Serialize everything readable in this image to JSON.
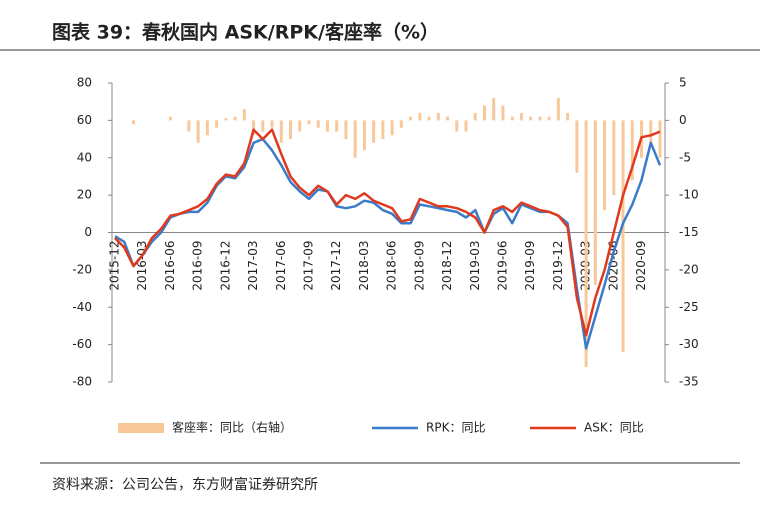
{
  "chart_data": {
    "type": "combo",
    "title": "图表 39：春秋国内 ASK/RPK/客座率（%）",
    "source": "资料来源：公司公告，东方财富证券研究所",
    "categories": [
      "2015-12",
      null,
      null,
      "2016-03",
      null,
      null,
      "2016-06",
      null,
      null,
      "2016-09",
      null,
      null,
      "2016-12",
      null,
      null,
      "2017-03",
      null,
      null,
      "2017-06",
      null,
      null,
      "2017-09",
      null,
      null,
      "2017-12",
      null,
      null,
      "2018-03",
      null,
      null,
      "2018-06",
      null,
      null,
      "2018-09",
      null,
      null,
      "2018-12",
      null,
      null,
      "2019-03",
      null,
      null,
      "2019-06",
      null,
      null,
      "2019-09",
      null,
      null,
      "2019-12",
      null,
      null,
      "2020-03",
      null,
      null,
      "2020-06",
      null,
      null,
      "2020-09",
      null,
      null
    ],
    "ylim": [
      -80,
      80
    ],
    "yticks": [
      80,
      60,
      40,
      20,
      0,
      -20,
      -40,
      -60,
      -80
    ],
    "y2lim": [
      -35,
      5
    ],
    "y2ticks": [
      5,
      0,
      -5,
      -10,
      -15,
      -20,
      -25,
      -30,
      -35
    ],
    "series": [
      {
        "name": "客座率：同比（右轴）",
        "type": "bar",
        "axis": "y2",
        "color": "#f8c89a",
        "values": [
          0,
          0,
          -0.5,
          0,
          0,
          0,
          0.5,
          0,
          -1.5,
          -3,
          -2,
          -1,
          0.3,
          0.5,
          1.5,
          -2,
          -1.5,
          -1,
          -3,
          -2.5,
          -1.5,
          -0.5,
          -1,
          -1.5,
          -1.5,
          -2.5,
          -5,
          -4,
          -3,
          -2.5,
          -2,
          -1,
          0.5,
          1,
          0.5,
          1,
          0.5,
          -1.5,
          -1.5,
          1,
          2,
          3,
          2,
          0.5,
          1,
          0.5,
          0.5,
          0.5,
          3,
          1,
          -7,
          -33,
          -22,
          -12,
          -10,
          -31,
          -8,
          -5,
          -3,
          -5
        ]
      },
      {
        "name": "RPK：同比",
        "type": "line",
        "color": "#3a7cc9",
        "values": [
          -2,
          -5,
          -18,
          -12,
          -5,
          0,
          8,
          10,
          11,
          11,
          16,
          25,
          30,
          29,
          35,
          48,
          50,
          44,
          36,
          27,
          22,
          18,
          23,
          22,
          14,
          13,
          14,
          17,
          16,
          12,
          10,
          5,
          5,
          15,
          14,
          13,
          12,
          11,
          8,
          12,
          0,
          10,
          13,
          5,
          15,
          13,
          11,
          11,
          9,
          5,
          -30,
          -62,
          -45,
          -28,
          -10,
          5,
          15,
          28,
          48,
          36
        ]
      },
      {
        "name": "ASK：同比",
        "type": "line",
        "color": "#e0391e",
        "values": [
          -3,
          -8,
          -18,
          -12,
          -3,
          2,
          9,
          10,
          12,
          14,
          18,
          26,
          31,
          30,
          37,
          55,
          50,
          55,
          42,
          30,
          24,
          20,
          25,
          22,
          15,
          20,
          18,
          21,
          17,
          15,
          13,
          6,
          7,
          18,
          16,
          14,
          14,
          13,
          11,
          8,
          0,
          12,
          14,
          11,
          16,
          14,
          12,
          11,
          9,
          3,
          -35,
          -55,
          -35,
          -20,
          0,
          20,
          35,
          51,
          52,
          54
        ]
      }
    ]
  }
}
